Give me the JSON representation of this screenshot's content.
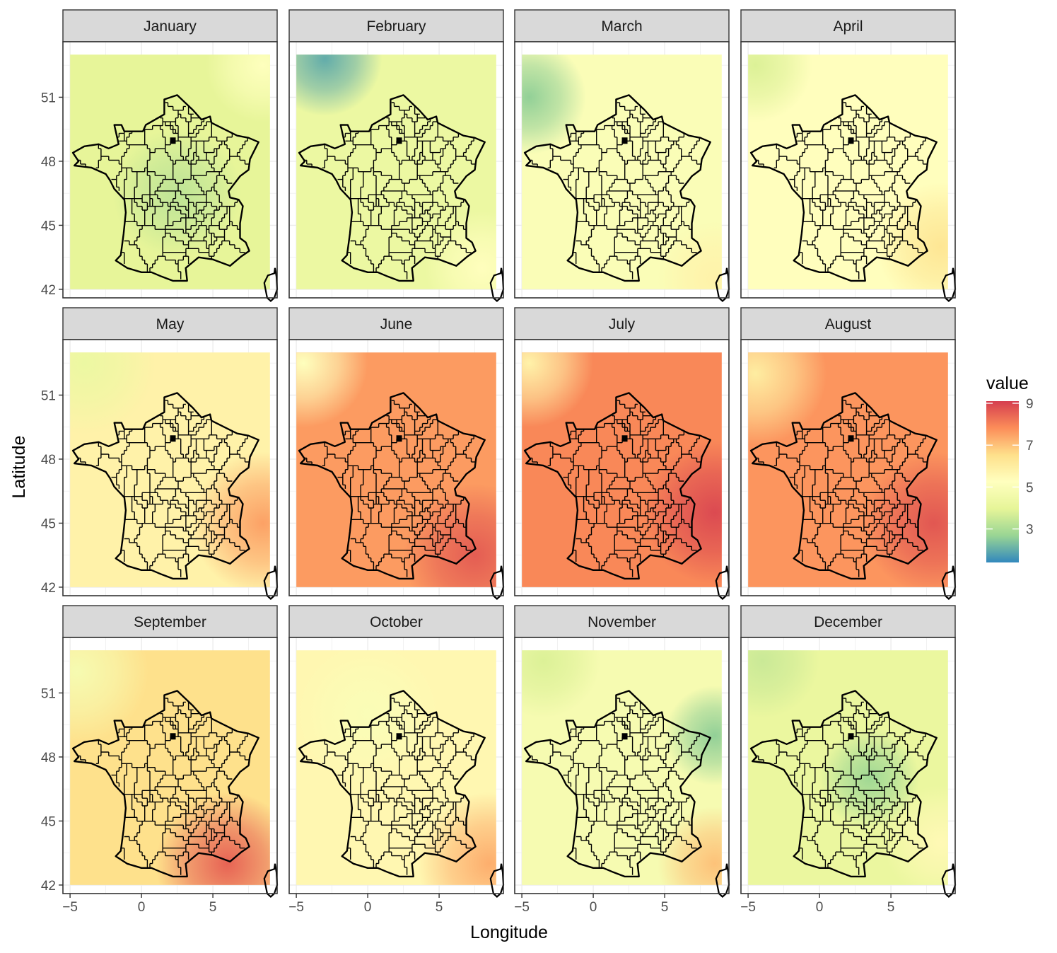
{
  "chart_data": {
    "type": "faceted-map",
    "xlabel": "Longitude",
    "ylabel": "Latitude",
    "x_ticks": [
      -5,
      0,
      5
    ],
    "y_ticks": [
      42,
      45,
      48,
      51
    ],
    "xlim": [
      -5.5,
      9.5
    ],
    "ylim": [
      41.6,
      53.6
    ],
    "raster_extent": {
      "lon": [
        -5,
        9
      ],
      "lat": [
        42,
        53
      ]
    },
    "legend": {
      "title": "value",
      "ticks": [
        3,
        5,
        7,
        9
      ],
      "range": [
        1.4,
        9.1
      ],
      "placement": "right",
      "colors": [
        "#3288bd",
        "#99d594",
        "#e6f598",
        "#ffffbf",
        "#fee08b",
        "#fc8d59",
        "#d53e4f"
      ]
    },
    "panels": [
      {
        "month": "January",
        "mean": 4.0,
        "gradients": [
          {
            "lon": 2.5,
            "lat": 46.5,
            "value": 3.3,
            "r": 4.5
          },
          {
            "lon": 8.5,
            "lat": 52.5,
            "value": 5.2,
            "r": 4
          }
        ]
      },
      {
        "month": "February",
        "mean": 4.3,
        "gradients": [
          {
            "lon": -3.0,
            "lat": 52.8,
            "value": 2.0,
            "r": 4
          },
          {
            "lon": 8.0,
            "lat": 43.0,
            "value": 5.3,
            "r": 4
          }
        ]
      },
      {
        "month": "March",
        "mean": 5.0,
        "gradients": [
          {
            "lon": -4.5,
            "lat": 51.0,
            "value": 2.6,
            "r": 4
          },
          {
            "lon": 8.5,
            "lat": 42.5,
            "value": 5.8,
            "r": 4
          }
        ]
      },
      {
        "month": "April",
        "mean": 5.3,
        "gradients": [
          {
            "lon": -4.5,
            "lat": 52.5,
            "value": 3.8,
            "r": 4
          },
          {
            "lon": 8.5,
            "lat": 44.0,
            "value": 6.3,
            "r": 4.5
          }
        ]
      },
      {
        "month": "May",
        "mean": 5.8,
        "gradients": [
          {
            "lon": -4.0,
            "lat": 52.5,
            "value": 4.3,
            "r": 5
          },
          {
            "lon": 8.5,
            "lat": 45.0,
            "value": 7.5,
            "r": 5
          }
        ]
      },
      {
        "month": "June",
        "mean": 7.6,
        "gradients": [
          {
            "lon": -4.5,
            "lat": 52.5,
            "value": 5.2,
            "r": 4.5
          },
          {
            "lon": 7.5,
            "lat": 43.5,
            "value": 8.6,
            "r": 5
          }
        ]
      },
      {
        "month": "July",
        "mean": 7.9,
        "gradients": [
          {
            "lon": -4.5,
            "lat": 52.5,
            "value": 5.8,
            "r": 4.5
          },
          {
            "lon": 8.5,
            "lat": 45.5,
            "value": 8.9,
            "r": 5
          }
        ]
      },
      {
        "month": "August",
        "mean": 7.7,
        "gradients": [
          {
            "lon": -4.5,
            "lat": 52.0,
            "value": 6.0,
            "r": 5
          },
          {
            "lon": 8.0,
            "lat": 45.0,
            "value": 8.7,
            "r": 5
          }
        ]
      },
      {
        "month": "September",
        "mean": 6.5,
        "gradients": [
          {
            "lon": -4.5,
            "lat": 52.0,
            "value": 4.8,
            "r": 5
          },
          {
            "lon": 6.0,
            "lat": 43.0,
            "value": 8.5,
            "r": 5
          }
        ]
      },
      {
        "month": "October",
        "mean": 5.6,
        "gradients": [
          {
            "lon": 0.0,
            "lat": 50.0,
            "value": 5.0,
            "r": 5
          },
          {
            "lon": 8.5,
            "lat": 43.0,
            "value": 7.3,
            "r": 5
          }
        ]
      },
      {
        "month": "November",
        "mean": 4.8,
        "gradients": [
          {
            "lon": 8.5,
            "lat": 49.0,
            "value": 2.6,
            "r": 3.5
          },
          {
            "lon": -3.5,
            "lat": 52.5,
            "value": 3.8,
            "r": 4
          },
          {
            "lon": 8.5,
            "lat": 43.0,
            "value": 7.0,
            "r": 4
          }
        ]
      },
      {
        "month": "December",
        "mean": 4.2,
        "gradients": [
          {
            "lon": 3.5,
            "lat": 47.0,
            "value": 2.8,
            "r": 3.5
          },
          {
            "lon": -4.0,
            "lat": 52.5,
            "value": 3.5,
            "r": 4
          },
          {
            "lon": 8.5,
            "lat": 44.0,
            "value": 5.5,
            "r": 4
          }
        ]
      }
    ]
  }
}
